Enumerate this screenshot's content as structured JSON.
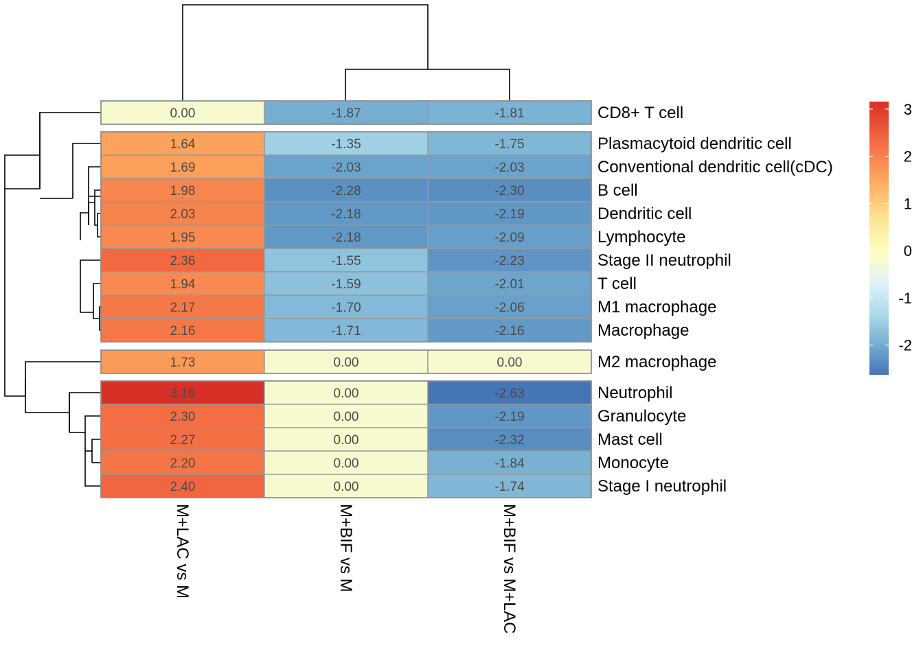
{
  "chart_data": {
    "type": "heatmap",
    "title": "",
    "columns": [
      "M+LAC vs M",
      "M+BIF vs M",
      "M+BIF vs M+LAC"
    ],
    "rows": [
      "CD8+ T cell",
      "Plasmacytoid dendritic cell",
      "Conventional dendritic cell(cDC)",
      "B cell",
      "Dendritic cell",
      "Lymphocyte",
      "Stage II neutrophil",
      "T cell",
      "M1 macrophage",
      "Macrophage",
      "M2 macrophage",
      "Neutrophil",
      "Granulocyte",
      "Mast cell",
      "Monocyte",
      "Stage I neutrophil"
    ],
    "values": [
      [
        0.0,
        -1.87,
        -1.81
      ],
      [
        1.64,
        -1.35,
        -1.75
      ],
      [
        1.69,
        -2.03,
        -2.03
      ],
      [
        1.98,
        -2.28,
        -2.3
      ],
      [
        2.03,
        -2.18,
        -2.19
      ],
      [
        1.95,
        -2.18,
        -2.09
      ],
      [
        2.36,
        -1.55,
        -2.23
      ],
      [
        1.94,
        -1.59,
        -2.01
      ],
      [
        2.17,
        -1.7,
        -2.06
      ],
      [
        2.16,
        -1.71,
        -2.16
      ],
      [
        1.73,
        0.0,
        0.0
      ],
      [
        3.16,
        0.0,
        -2.63
      ],
      [
        2.3,
        0.0,
        -2.19
      ],
      [
        2.27,
        0.0,
        -2.32
      ],
      [
        2.2,
        0.0,
        -1.84
      ],
      [
        2.4,
        0.0,
        -1.74
      ]
    ],
    "value_labels": [
      [
        "0.00",
        "-1.87",
        "-1.81"
      ],
      [
        "1.64",
        "-1.35",
        "-1.75"
      ],
      [
        "1.69",
        "-2.03",
        "-2.03"
      ],
      [
        "1.98",
        "-2.28",
        "-2.30"
      ],
      [
        "2.03",
        "-2.18",
        "-2.19"
      ],
      [
        "1.95",
        "-2.18",
        "-2.09"
      ],
      [
        "2.36",
        "-1.55",
        "-2.23"
      ],
      [
        "1.94",
        "-1.59",
        "-2.01"
      ],
      [
        "2.17",
        "-1.70",
        "-2.06"
      ],
      [
        "2.16",
        "-1.71",
        "-2.16"
      ],
      [
        "1.73",
        "0.00",
        "0.00"
      ],
      [
        "3.16",
        "0.00",
        "-2.63"
      ],
      [
        "2.30",
        "0.00",
        "-2.19"
      ],
      [
        "2.27",
        "0.00",
        "-2.32"
      ],
      [
        "2.20",
        "0.00",
        "-1.84"
      ],
      [
        "2.40",
        "0.00",
        "-1.74"
      ]
    ],
    "row_groups": [
      [
        0,
        0
      ],
      [
        1,
        9
      ],
      [
        10,
        10
      ],
      [
        11,
        15
      ]
    ],
    "color_scale": {
      "range": [
        -2.63,
        3.16
      ],
      "low": "#4575b4",
      "mid": "#ffffbf",
      "high": "#d73027",
      "ticks": [
        3,
        2,
        1,
        0,
        -1,
        -2
      ]
    },
    "cell_border_color": "#999999",
    "dendrogram_color": "#000000",
    "col_dendrogram": "columns 2 and 3 merge first, then join column 1",
    "row_dendrogram": "hierarchical clustering of rows shown on the left"
  }
}
